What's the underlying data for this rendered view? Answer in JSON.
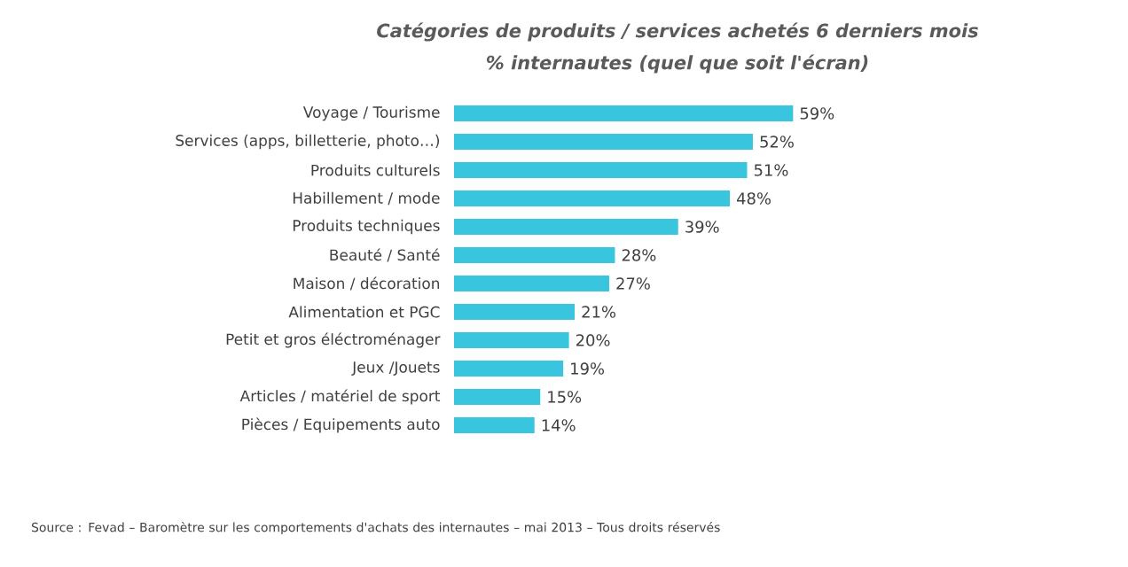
{
  "chart_data": {
    "type": "bar",
    "orientation": "horizontal",
    "title": "Catégories de produits / services achetés 6 derniers mois",
    "subtitle": "% internautes (quel que soit l'écran)",
    "categories": [
      "Voyage / Tourisme",
      "Services (apps, billetterie, photo…)",
      "Produits culturels",
      "Habillement / mode",
      "Produits techniques",
      "Beauté / Santé",
      "Maison / décoration",
      "Alimentation et PGC",
      "Petit et gros éléctroménager",
      "Jeux /Jouets",
      "Articles / matériel de sport",
      "Pièces / Equipements auto"
    ],
    "values": [
      59,
      52,
      51,
      48,
      39,
      28,
      27,
      21,
      20,
      19,
      15,
      14
    ],
    "value_labels": [
      "59%",
      "52%",
      "51%",
      "48%",
      "39%",
      "28%",
      "27%",
      "21%",
      "20%",
      "19%",
      "15%",
      "14%"
    ],
    "color": "#39c5de",
    "annotations": [
      "Source : Fevad – Baromètre sur les comportements d'achats des internautes – mai 2013 – Tous droits réservés"
    ]
  }
}
